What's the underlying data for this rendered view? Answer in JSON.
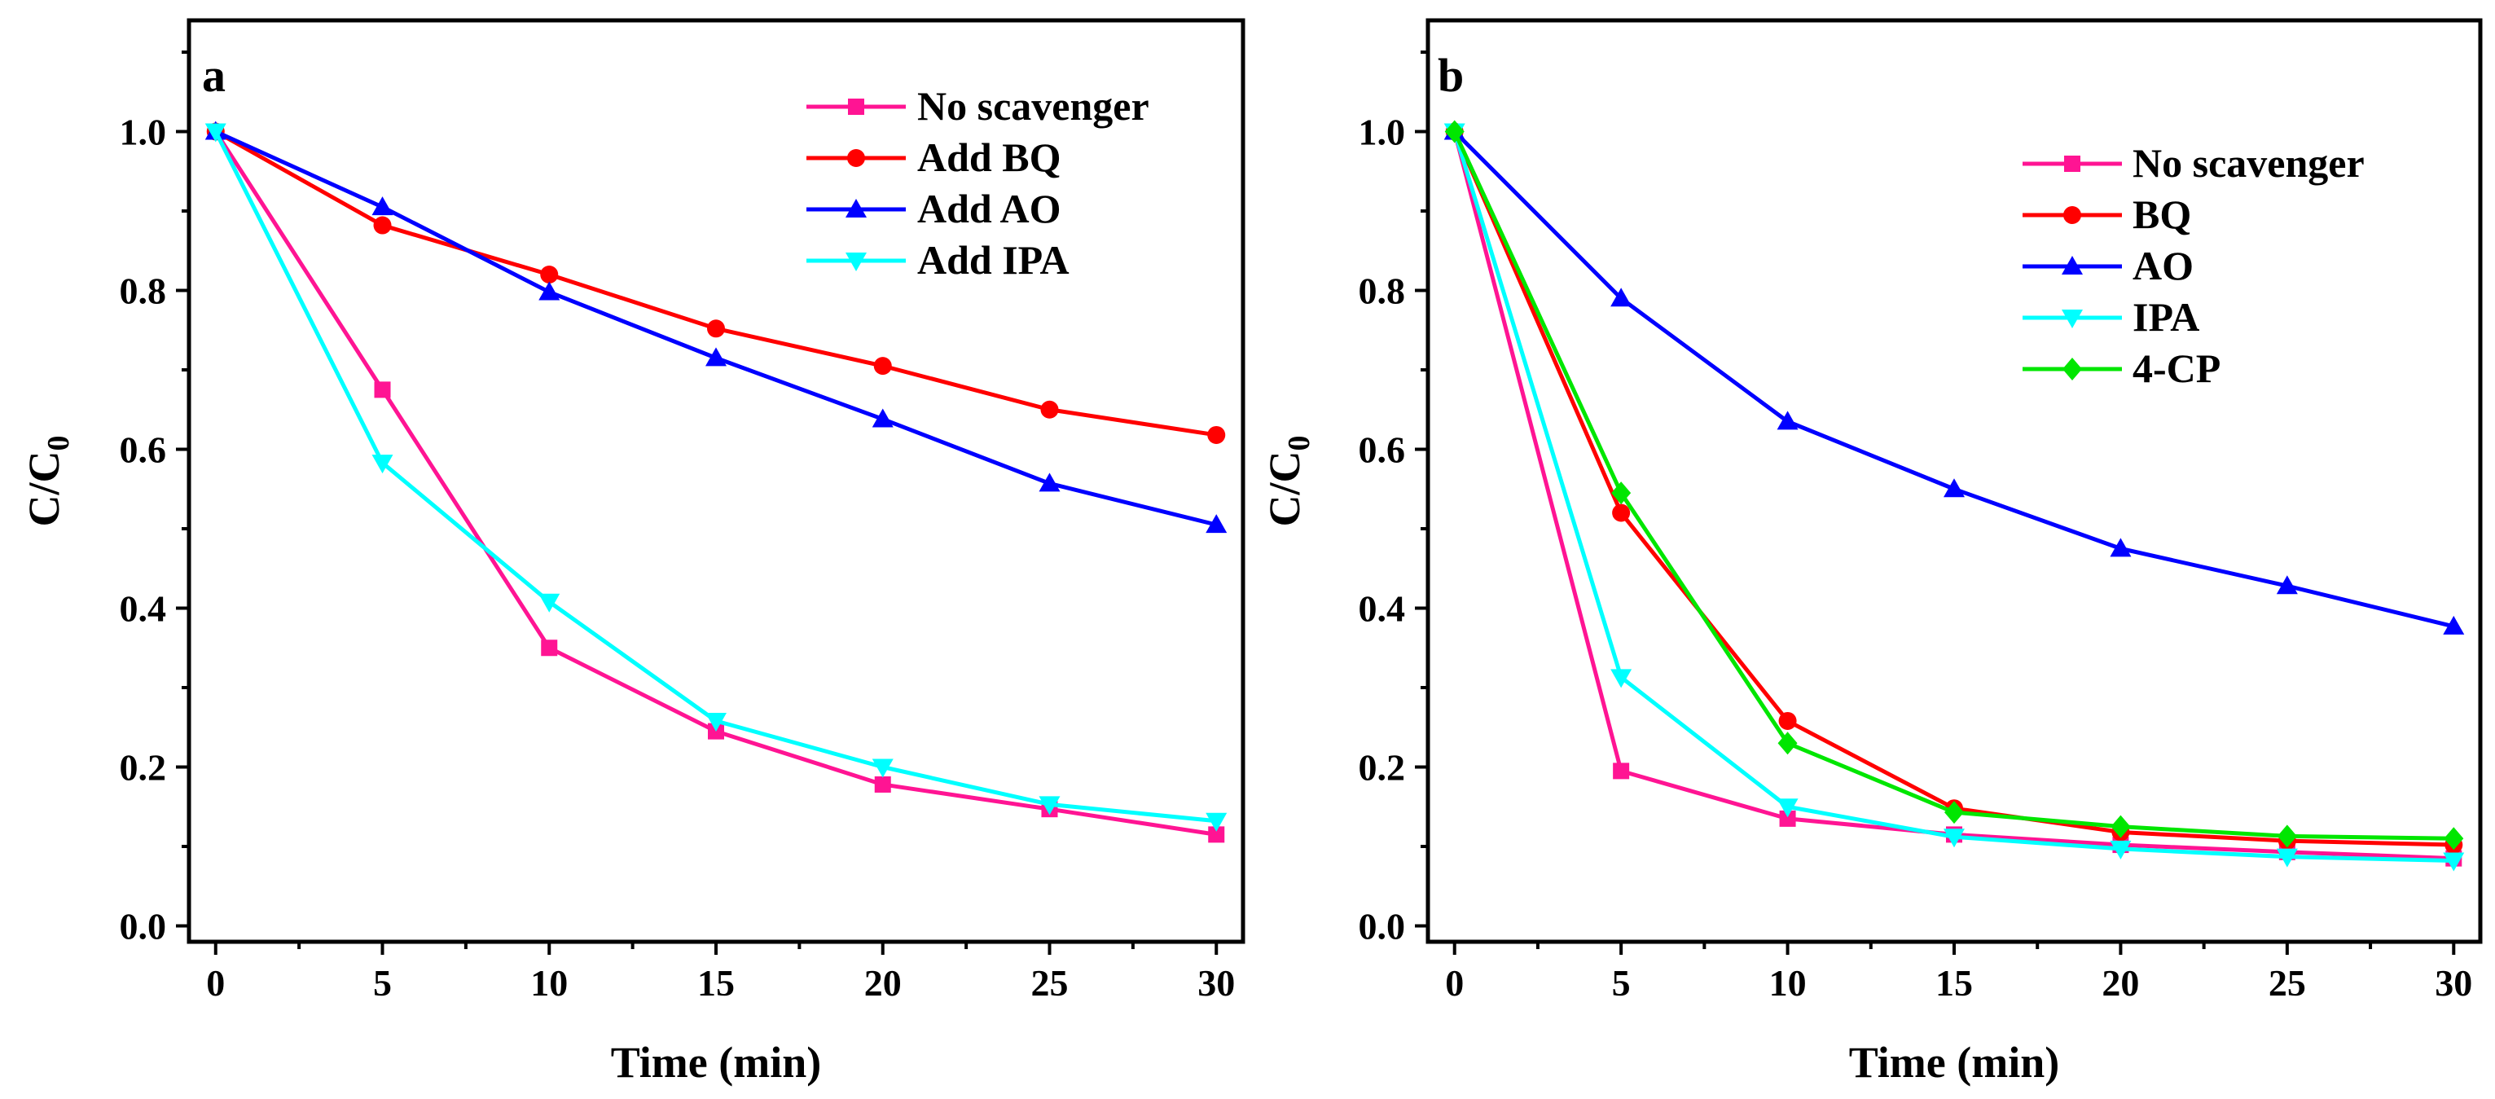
{
  "chart_data": [
    {
      "type": "line",
      "panel_label": "a",
      "xlabel": "Time (min)",
      "ylabel": "C/C",
      "ylabel_subscript": "0",
      "xlim": [
        -0.8,
        30.8
      ],
      "ylim": [
        -0.02,
        1.14
      ],
      "xticks": [
        0,
        5,
        10,
        15,
        20,
        25,
        30
      ],
      "yticks": [
        0.0,
        0.2,
        0.4,
        0.6,
        0.8,
        1.0
      ],
      "xtick_labels": [
        "0",
        "5",
        "10",
        "15",
        "20",
        "25",
        "30"
      ],
      "ytick_labels": [
        "0.0",
        "0.2",
        "0.4",
        "0.6",
        "0.8",
        "1.0"
      ],
      "legend_position": "top-right",
      "x": [
        0,
        5,
        10,
        15,
        20,
        25,
        30
      ],
      "series": [
        {
          "name": "No scavenger",
          "color": "#ff1493",
          "marker": "square",
          "values": [
            1.0,
            0.675,
            0.35,
            0.245,
            0.178,
            0.147,
            0.115
          ]
        },
        {
          "name": "Add BQ",
          "color": "#ff0000",
          "marker": "circle",
          "values": [
            1.0,
            0.882,
            0.82,
            0.752,
            0.705,
            0.65,
            0.618
          ]
        },
        {
          "name": "Add AO",
          "color": "#0000ff",
          "marker": "triangle-up",
          "values": [
            1.0,
            0.905,
            0.798,
            0.715,
            0.638,
            0.557,
            0.505
          ]
        },
        {
          "name": "Add IPA",
          "color": "#00ffff",
          "marker": "triangle-down",
          "values": [
            1.0,
            0.583,
            0.408,
            0.258,
            0.2,
            0.153,
            0.132
          ]
        }
      ]
    },
    {
      "type": "line",
      "panel_label": "b",
      "xlabel": "Time (min)",
      "ylabel": "C/C",
      "ylabel_subscript": "0",
      "xlim": [
        -0.8,
        30.8
      ],
      "ylim": [
        -0.02,
        1.14
      ],
      "xticks": [
        0,
        5,
        10,
        15,
        20,
        25,
        30
      ],
      "yticks": [
        0.0,
        0.2,
        0.4,
        0.6,
        0.8,
        1.0
      ],
      "xtick_labels": [
        "0",
        "5",
        "10",
        "15",
        "20",
        "25",
        "30"
      ],
      "ytick_labels": [
        "0.0",
        "0.2",
        "0.4",
        "0.6",
        "0.8",
        "1.0"
      ],
      "legend_position": "top-right",
      "x": [
        0,
        5,
        10,
        15,
        20,
        25,
        30
      ],
      "series": [
        {
          "name": "No scavenger",
          "color": "#ff1493",
          "marker": "square",
          "values": [
            1.0,
            0.195,
            0.135,
            0.115,
            0.102,
            0.093,
            0.085
          ]
        },
        {
          "name": "BQ",
          "color": "#ff0000",
          "marker": "circle",
          "values": [
            1.0,
            0.52,
            0.258,
            0.148,
            0.118,
            0.107,
            0.102
          ]
        },
        {
          "name": "AO",
          "color": "#0000ff",
          "marker": "triangle-up",
          "values": [
            1.0,
            0.79,
            0.635,
            0.55,
            0.475,
            0.428,
            0.377
          ]
        },
        {
          "name": "IPA",
          "color": "#00ffff",
          "marker": "triangle-down",
          "values": [
            1.0,
            0.313,
            0.15,
            0.112,
            0.097,
            0.087,
            0.082
          ]
        },
        {
          "name": "4-CP",
          "color": "#00e600",
          "marker": "diamond",
          "values": [
            1.0,
            0.545,
            0.23,
            0.143,
            0.125,
            0.113,
            0.11
          ]
        }
      ]
    }
  ]
}
